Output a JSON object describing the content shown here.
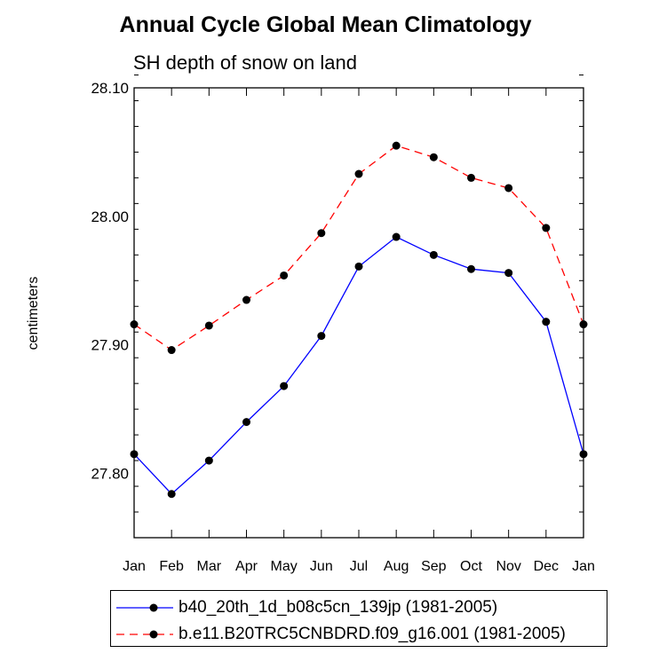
{
  "chart_data": {
    "type": "line",
    "title": "Annual Cycle Global Mean Climatology",
    "subtitle": "SH depth of snow on land",
    "ylabel": "centimeters",
    "xlabel": "",
    "categories": [
      "Jan",
      "Feb",
      "Mar",
      "Apr",
      "May",
      "Jun",
      "Jul",
      "Aug",
      "Sep",
      "Oct",
      "Nov",
      "Dec",
      "Jan"
    ],
    "ylim": [
      27.75,
      28.1
    ],
    "yticks": [
      27.8,
      27.9,
      28.0,
      28.1
    ],
    "ytick_labels": [
      "27.80",
      "27.90",
      "28.00",
      "28.10"
    ],
    "series": [
      {
        "name": "b40_20th_1d_b08c5cn_139jp (1981-2005)",
        "color": "#0000ff",
        "dash": "solid",
        "values": [
          27.815,
          27.784,
          27.81,
          27.84,
          27.868,
          27.907,
          27.961,
          27.984,
          27.97,
          27.959,
          27.956,
          27.918,
          27.815
        ]
      },
      {
        "name": "b.e11.B20TRC5CNBDRD.f09_g16.001 (1981-2005)",
        "color": "#ff0000",
        "dash": "dashed",
        "values": [
          27.916,
          27.896,
          27.915,
          27.935,
          27.954,
          27.987,
          28.033,
          28.055,
          28.046,
          28.03,
          28.022,
          27.991,
          27.916
        ]
      }
    ],
    "grid": false,
    "legend_position": "bottom"
  }
}
